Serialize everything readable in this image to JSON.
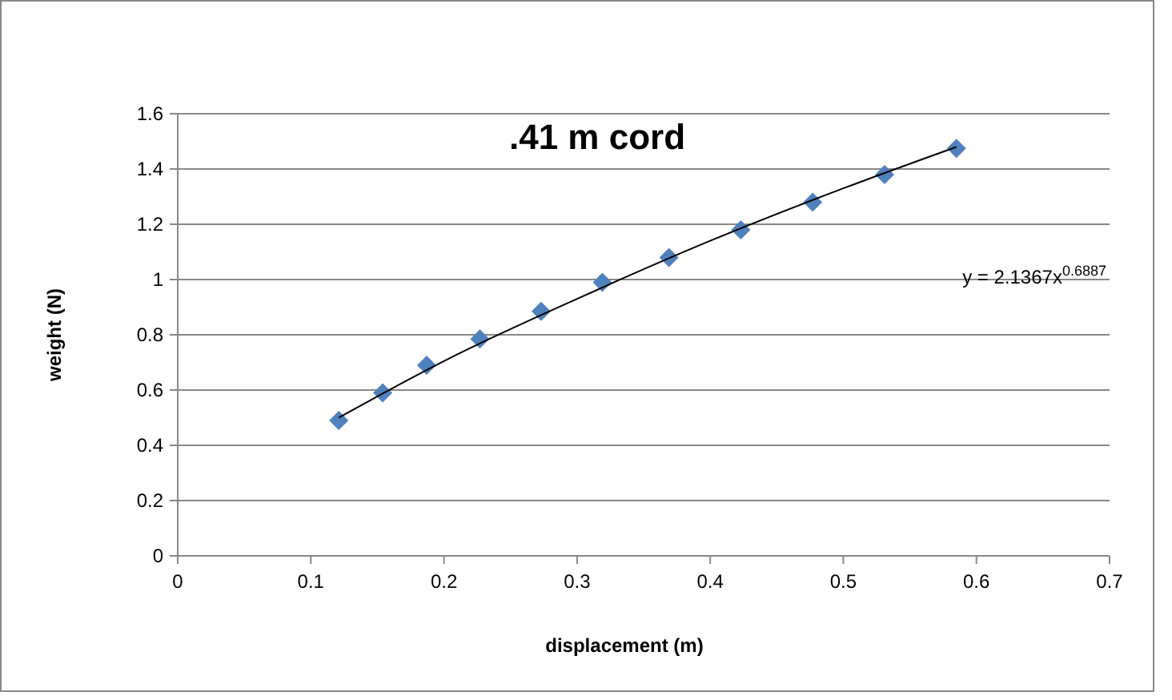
{
  "chart_data": {
    "type": "scatter",
    "title": ".41 m cord",
    "xlabel": "displacement (m)",
    "ylabel": "weight (N)",
    "annotations": [
      "y = 2.1367x$^{0.6887}$"
    ],
    "xlim": [
      0,
      0.7
    ],
    "xticks": [
      0,
      0.1,
      0.2,
      0.3,
      0.4,
      0.5,
      0.6,
      0.7
    ],
    "ylim": [
      0,
      1.6
    ],
    "yticks": [
      0,
      0.2,
      0.4,
      0.6,
      0.8,
      1,
      1.2,
      1.4,
      1.6
    ],
    "grid": "y",
    "series": [
      {
        "color": "#4f81bd",
        "marker": "diamond",
        "x": [
          0.121,
          0.154,
          0.187,
          0.227,
          0.273,
          0.319,
          0.369,
          0.423,
          0.477,
          0.531,
          0.585
        ],
        "values": [
          0.49,
          0.59,
          0.69,
          0.785,
          0.885,
          0.99,
          1.08,
          1.18,
          1.28,
          1.38,
          1.475
        ]
      },
      {
        "type": "line",
        "color": "#000000",
        "marker": "none",
        "line_style": "solid",
        "x": [
          0.121,
          0.2,
          0.3,
          0.4,
          0.5,
          0.585
        ],
        "values": [
          0.5,
          0.705,
          0.93,
          1.14,
          1.33,
          1.48
        ]
      }
    ]
  }
}
